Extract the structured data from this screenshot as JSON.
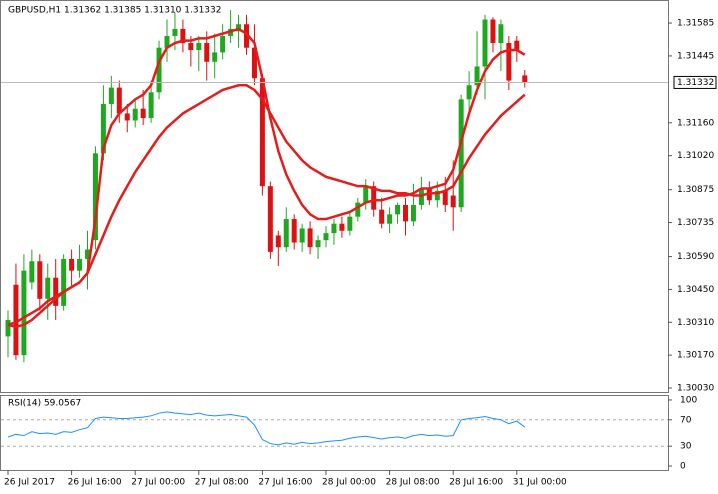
{
  "chart_data": [
    {
      "type": "candlestick",
      "title": "GBPUSD,H1  1.31362 1.31385 1.31310 1.31332",
      "categories": [
        "26 Jul 2017",
        null,
        null,
        null,
        null,
        null,
        null,
        null,
        "26 Jul 16:00",
        null,
        null,
        null,
        null,
        null,
        null,
        null,
        "27 Jul 00:00",
        null,
        null,
        null,
        null,
        null,
        null,
        null,
        "27 Jul 08:00",
        null,
        null,
        null,
        null,
        null,
        null,
        null,
        "27 Jul 16:00",
        null,
        null,
        null,
        null,
        null,
        null,
        null,
        "28 Jul 00:00",
        null,
        null,
        null,
        null,
        null,
        null,
        null,
        "28 Jul 08:00",
        null,
        null,
        null,
        null,
        null,
        null,
        null,
        "28 Jul 16:00",
        null,
        null,
        null,
        null,
        null,
        null,
        null,
        "31 Jul 00:00",
        null
      ],
      "open": [
        1.3025,
        1.3047,
        1.3017,
        1.3048,
        1.3057,
        1.3041,
        1.305,
        1.3038,
        1.3058,
        1.3053,
        1.3058,
        1.3066,
        1.3103,
        1.3124,
        1.3131,
        1.312,
        1.3117,
        1.3122,
        1.3118,
        1.3129,
        1.3148,
        1.3153,
        1.3156,
        1.315,
        1.3147,
        1.315,
        1.3142,
        1.3146,
        1.3153,
        1.3155,
        1.3158,
        1.3148,
        1.3135,
        1.3089,
        1.3068,
        1.3063,
        1.3075,
        1.3065,
        1.3071,
        1.3063,
        1.3066,
        1.3069,
        1.3073,
        1.307,
        1.3076,
        1.3082,
        1.3089,
        1.3079,
        1.3073,
        1.3077,
        1.3081,
        1.3074,
        1.3081,
        1.3088,
        1.3083,
        1.3087,
        1.3085,
        1.308,
        1.3126,
        1.3132,
        1.314,
        1.316,
        1.315,
        1.315,
        1.3151,
        1.31362
      ],
      "high": [
        1.3036,
        1.3056,
        1.306,
        1.3062,
        1.306,
        1.3056,
        1.3058,
        1.306,
        1.3062,
        1.3064,
        1.307,
        1.3106,
        1.3132,
        1.3136,
        1.3134,
        1.3124,
        1.3126,
        1.313,
        1.3134,
        1.3151,
        1.316,
        1.3163,
        1.316,
        1.3153,
        1.3153,
        1.3155,
        1.3154,
        1.3158,
        1.3164,
        1.3162,
        1.3162,
        1.3158,
        1.3137,
        1.3091,
        1.307,
        1.308,
        1.3077,
        1.3073,
        1.3074,
        1.3068,
        1.3072,
        1.3075,
        1.3076,
        1.3078,
        1.3084,
        1.3092,
        1.3091,
        1.3084,
        1.308,
        1.3082,
        1.3084,
        1.309,
        1.3093,
        1.3091,
        1.3091,
        1.3093,
        1.31,
        1.3128,
        1.3138,
        1.3155,
        1.3162,
        1.3161,
        1.316,
        1.3153,
        1.3153,
        1.31385
      ],
      "low": [
        1.3016,
        1.3015,
        1.3014,
        1.3045,
        1.3036,
        1.3032,
        1.3032,
        1.3036,
        1.3046,
        1.305,
        1.3045,
        1.3062,
        1.31,
        1.3118,
        1.3116,
        1.3112,
        1.3114,
        1.3115,
        1.3116,
        1.3126,
        1.3142,
        1.3147,
        1.3146,
        1.314,
        1.3138,
        1.3134,
        1.3135,
        1.3143,
        1.315,
        1.3148,
        1.3145,
        1.3132,
        1.3085,
        1.3058,
        1.3055,
        1.3061,
        1.3062,
        1.3061,
        1.306,
        1.3058,
        1.3063,
        1.3064,
        1.3067,
        1.3068,
        1.3074,
        1.3079,
        1.3076,
        1.3071,
        1.3069,
        1.3073,
        1.3068,
        1.3072,
        1.3079,
        1.3081,
        1.308,
        1.3078,
        1.307,
        1.3078,
        1.312,
        1.3128,
        1.3126,
        1.3146,
        1.3138,
        1.313,
        1.3142,
        1.3131
      ],
      "close": [
        1.3032,
        1.3017,
        1.3053,
        1.3057,
        1.3041,
        1.305,
        1.3038,
        1.3058,
        1.3053,
        1.3058,
        1.3062,
        1.3103,
        1.3124,
        1.3131,
        1.312,
        1.3117,
        1.3122,
        1.3118,
        1.3129,
        1.3148,
        1.3153,
        1.3156,
        1.315,
        1.3147,
        1.315,
        1.3142,
        1.3146,
        1.3153,
        1.3156,
        1.3158,
        1.3148,
        1.3135,
        1.3089,
        1.3061,
        1.3063,
        1.3075,
        1.3065,
        1.3071,
        1.3063,
        1.3066,
        1.3069,
        1.3073,
        1.307,
        1.3076,
        1.3082,
        1.3089,
        1.3079,
        1.3073,
        1.3077,
        1.3081,
        1.3074,
        1.3081,
        1.3088,
        1.3083,
        1.3087,
        1.3081,
        1.308,
        1.3126,
        1.3132,
        1.314,
        1.316,
        1.315,
        1.3158,
        1.3134,
        1.3147,
        1.31332
      ],
      "up_color": "#1fa81f",
      "down_color": "#dd1111",
      "overlays": [
        {
          "color": "#e51c1c",
          "values": [
            1.303,
            1.3029,
            1.303,
            1.3032,
            1.3035,
            1.3038,
            1.3041,
            1.3044,
            1.3046,
            1.3048,
            1.3052,
            1.3075,
            1.3105,
            1.3115,
            1.312,
            1.3123,
            1.3126,
            1.3128,
            1.3132,
            1.3142,
            1.3148,
            1.315,
            1.3151,
            1.3151,
            1.3152,
            1.3152,
            1.3153,
            1.3154,
            1.3155,
            1.3156,
            1.3154,
            1.315,
            1.3135,
            1.3118,
            1.3104,
            1.3094,
            1.3087,
            1.3081,
            1.3077,
            1.3075,
            1.3075,
            1.3076,
            1.3077,
            1.3078,
            1.308,
            1.3082,
            1.3083,
            1.3083,
            1.3084,
            1.3085,
            1.3085,
            1.3086,
            1.3088,
            1.3088,
            1.3089,
            1.309,
            1.3096,
            1.3108,
            1.312,
            1.313,
            1.3138,
            1.3143,
            1.3146,
            1.3147,
            1.3147,
            1.3145
          ]
        },
        {
          "color": "#e51c1c",
          "values": [
            1.303,
            1.3031,
            1.3033,
            1.3035,
            1.3037,
            1.304,
            1.3042,
            1.3044,
            1.3046,
            1.3048,
            1.3052,
            1.306,
            1.3068,
            1.3076,
            1.3083,
            1.3089,
            1.3095,
            1.31,
            1.3105,
            1.311,
            1.3114,
            1.3117,
            1.312,
            1.3122,
            1.3124,
            1.3126,
            1.3128,
            1.313,
            1.3131,
            1.3132,
            1.3132,
            1.313,
            1.3126,
            1.312,
            1.3114,
            1.3108,
            1.3104,
            1.31,
            1.3097,
            1.3095,
            1.3093,
            1.3092,
            1.3091,
            1.309,
            1.3089,
            1.3089,
            1.3088,
            1.3087,
            1.3087,
            1.3086,
            1.3086,
            1.3085,
            1.3085,
            1.3086,
            1.3086,
            1.3087,
            1.3089,
            1.3095,
            1.3101,
            1.3106,
            1.3111,
            1.3115,
            1.3119,
            1.3122,
            1.3125,
            1.3128
          ]
        }
      ],
      "ylim": [
        1.30013,
        1.31679
      ],
      "yticks": [
        1.31585,
        1.31445,
        {
          "value": 1.3116,
          "label": "1.31160"
        },
        {
          "value": 1.3102,
          "label": "1.31020"
        },
        1.30875,
        1.30735,
        {
          "value": 1.3059,
          "label": "1.30590"
        },
        {
          "value": 1.3045,
          "label": "1.30450"
        },
        {
          "value": 1.3031,
          "label": "1.30310"
        },
        {
          "value": 1.3017,
          "label": "1.30170"
        },
        {
          "value": 1.3003,
          "label": "1.30030"
        }
      ],
      "current_price": 1.31332
    },
    {
      "type": "line",
      "title": "RSI(14) 59.0567",
      "color": "#1e90ff",
      "values": [
        44,
        48,
        46,
        52,
        49,
        50,
        48,
        52,
        51,
        55,
        58,
        72,
        74,
        73,
        72,
        72,
        73,
        74,
        76,
        80,
        82,
        80,
        79,
        78,
        80,
        77,
        76,
        77,
        78,
        76,
        74,
        62,
        40,
        34,
        32,
        35,
        33,
        36,
        34,
        35,
        37,
        38,
        39,
        42,
        44,
        45,
        43,
        41,
        43,
        44,
        42,
        46,
        48,
        46,
        47,
        45,
        46,
        70,
        72,
        73,
        75,
        72,
        70,
        64,
        68,
        59
      ],
      "ylim": [
        -6,
        106
      ],
      "yticks": [
        100,
        70,
        30,
        0
      ],
      "levels": [
        70,
        30
      ]
    }
  ]
}
